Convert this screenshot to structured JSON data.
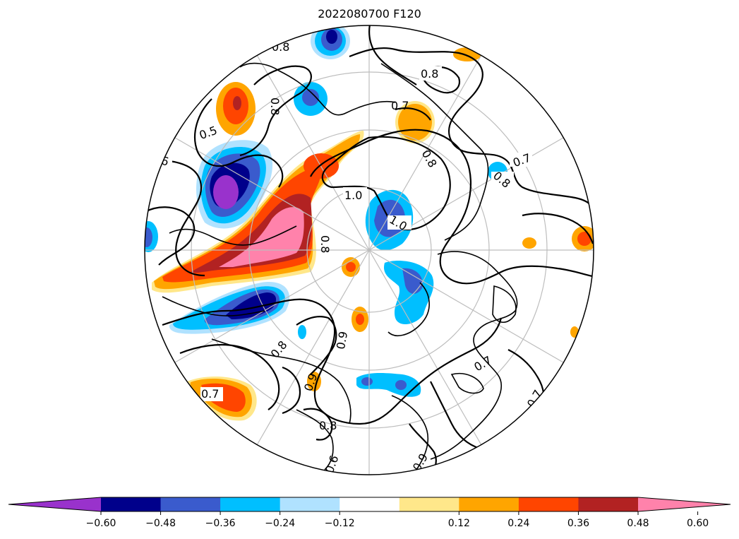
{
  "title": "2022080700 F120",
  "projection": "north-polar-stereographic",
  "contour_labels": [
    "0.8",
    "0.8",
    "0.8",
    "0.5",
    "0.6",
    "0.7",
    "0.8",
    "0.7",
    "0.8",
    "1.0",
    "1.0",
    "0.8",
    "0.9",
    "0.7",
    "0.7",
    "0.8",
    "0.6",
    "0.7",
    "0.9",
    "0.9",
    "0.8"
  ],
  "colorbar": {
    "extend": "both",
    "colors": [
      "#9932cc",
      "#00008b",
      "#3a5bcd",
      "#00bfff",
      "#b0e2ff",
      "#ffffff",
      "#ffe78a",
      "#ffa500",
      "#ff4500",
      "#b22222",
      "#ff82ab"
    ],
    "ticks": [
      "−0.60",
      "−0.48",
      "−0.36",
      "−0.24",
      "−0.12",
      "0.12",
      "0.24",
      "0.36",
      "0.48",
      "0.60"
    ]
  },
  "colors": {
    "purple": "#9932cc",
    "navy": "#00008b",
    "blue": "#3a5bcd",
    "cyan": "#00bfff",
    "lightblue": "#b0e2ff",
    "yellow": "#ffe78a",
    "orange": "#ffa500",
    "redorange": "#ff4500",
    "darkred": "#b22222",
    "pink": "#ff82ab"
  }
}
